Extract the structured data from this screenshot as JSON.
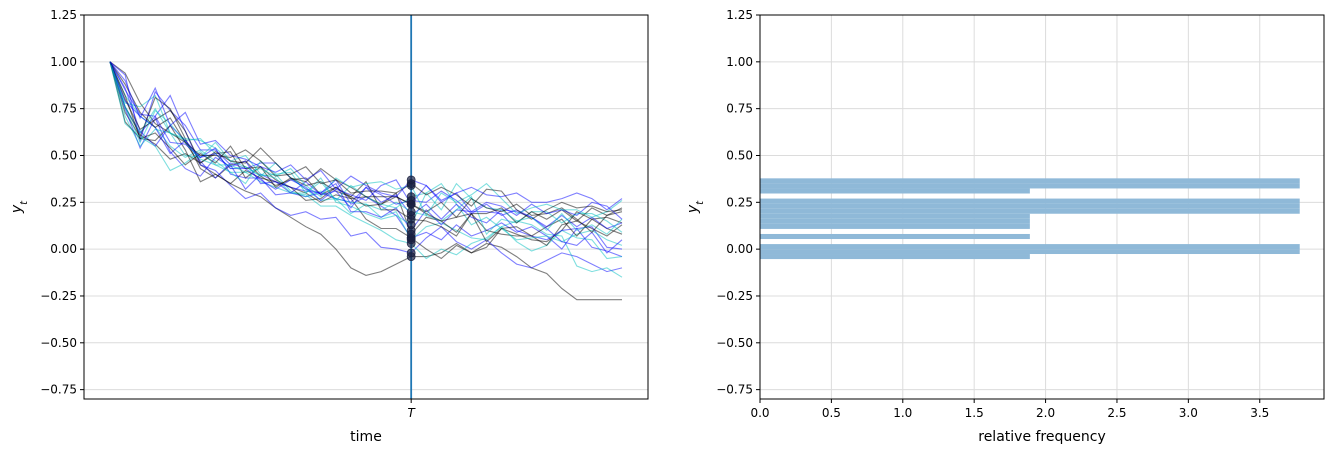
{
  "chart_data": [
    {
      "type": "line",
      "xlabel": "time",
      "ylabel": "y_t",
      "ylim": [
        -0.8,
        1.25
      ],
      "yticks": [
        -0.75,
        -0.5,
        -0.25,
        0.0,
        0.25,
        0.5,
        0.75,
        1.0,
        1.25
      ],
      "ytick_labels": [
        "−0.75",
        "−0.50",
        "−0.25",
        "0.00",
        "0.25",
        "0.50",
        "0.75",
        "1.00",
        "1.25"
      ],
      "xtick_labels": [
        "T"
      ],
      "grid": "horizontal",
      "vline_label": "T",
      "vline_step": 20,
      "n_steps": 34,
      "path_colors": [
        "#000000",
        "#0000ff",
        "#00c0c0"
      ],
      "vline_color": "#1f77b4",
      "marker_color": "#1a2040",
      "series": [
        {
          "values": [
            1.0,
            0.94,
            0.78,
            0.67,
            0.62,
            0.57,
            0.45,
            0.4,
            0.35,
            0.31,
            0.28,
            0.22,
            0.17,
            0.12,
            0.08,
            0.0,
            -0.1,
            -0.14,
            -0.12,
            -0.08,
            -0.04,
            -0.04,
            -0.02,
            0.03,
            -0.02,
            0.03,
            0.01,
            -0.04,
            -0.1,
            -0.13,
            -0.21,
            -0.27,
            -0.27,
            -0.27,
            -0.27
          ]
        },
        {
          "values": [
            1.0,
            0.76,
            0.62,
            0.71,
            0.82,
            0.63,
            0.45,
            0.42,
            0.34,
            0.27,
            0.3,
            0.22,
            0.18,
            0.2,
            0.16,
            0.17,
            0.07,
            0.09,
            0.01,
            0.0,
            -0.02,
            0.06,
            0.12,
            0.04,
            0.0,
            0.05,
            -0.02,
            -0.08,
            -0.1,
            -0.06,
            -0.02,
            -0.04,
            -0.08,
            -0.12,
            -0.1
          ]
        },
        {
          "values": [
            1.0,
            0.82,
            0.71,
            0.65,
            0.55,
            0.49,
            0.53,
            0.47,
            0.41,
            0.41,
            0.36,
            0.33,
            0.3,
            0.29,
            0.23,
            0.23,
            0.18,
            0.14,
            0.1,
            0.05,
            0.03,
            -0.05,
            0.0,
            -0.03,
            0.03,
            0.06,
            0.12,
            0.15,
            0.13,
            0.08,
            0.07,
            -0.09,
            -0.12,
            -0.1,
            -0.15
          ]
        },
        {
          "values": [
            1.0,
            0.76,
            0.61,
            0.56,
            0.48,
            0.51,
            0.46,
            0.51,
            0.52,
            0.38,
            0.44,
            0.37,
            0.33,
            0.3,
            0.25,
            0.29,
            0.27,
            0.16,
            0.11,
            0.11,
            0.06,
            0.0,
            -0.05,
            0.02,
            -0.02,
            0.01,
            0.11,
            0.08,
            0.05,
            0.04,
            0.1,
            0.2,
            0.16,
            0.11,
            0.08
          ]
        },
        {
          "values": [
            1.0,
            0.93,
            0.58,
            0.84,
            0.74,
            0.66,
            0.53,
            0.53,
            0.45,
            0.32,
            0.4,
            0.36,
            0.3,
            0.28,
            0.3,
            0.37,
            0.24,
            0.28,
            0.23,
            0.18,
            0.06,
            0.09,
            0.05,
            0.13,
            0.07,
            0.1,
            0.14,
            0.09,
            0.12,
            0.07,
            0.0,
            0.11,
            0.01,
            -0.01,
            -0.04
          ]
        },
        {
          "values": [
            1.0,
            0.78,
            0.76,
            0.82,
            0.62,
            0.58,
            0.59,
            0.51,
            0.43,
            0.44,
            0.39,
            0.4,
            0.31,
            0.28,
            0.31,
            0.27,
            0.19,
            0.24,
            0.17,
            0.2,
            0.05,
            0.12,
            0.14,
            0.1,
            0.06,
            0.05,
            0.12,
            0.04,
            -0.01,
            0.02,
            0.1,
            0.06,
            0.05,
            -0.05,
            -0.04
          ]
        },
        {
          "values": [
            1.0,
            0.73,
            0.6,
            0.81,
            0.75,
            0.59,
            0.43,
            0.38,
            0.45,
            0.47,
            0.39,
            0.34,
            0.37,
            0.38,
            0.29,
            0.33,
            0.27,
            0.28,
            0.24,
            0.3,
            0.08,
            0.17,
            0.15,
            0.09,
            0.19,
            0.1,
            0.08,
            0.07,
            0.07,
            0.02,
            0.13,
            0.15,
            0.11,
            0.07,
            0.13
          ]
        },
        {
          "values": [
            1.0,
            0.86,
            0.63,
            0.55,
            0.66,
            0.58,
            0.47,
            0.38,
            0.46,
            0.43,
            0.46,
            0.46,
            0.38,
            0.32,
            0.3,
            0.35,
            0.2,
            0.2,
            0.17,
            0.22,
            0.1,
            0.21,
            0.13,
            0.21,
            0.2,
            0.2,
            0.19,
            0.1,
            0.07,
            0.05,
            0.1,
            0.11,
            0.12,
            0.01,
            0.0
          ]
        },
        {
          "values": [
            1.0,
            0.76,
            0.62,
            0.75,
            0.62,
            0.5,
            0.49,
            0.57,
            0.47,
            0.5,
            0.4,
            0.38,
            0.3,
            0.3,
            0.38,
            0.25,
            0.23,
            0.19,
            0.16,
            0.18,
            0.13,
            0.3,
            0.35,
            0.24,
            0.13,
            0.17,
            0.11,
            0.05,
            0.06,
            0.07,
            0.04,
            0.08,
            0.1,
            0.05,
            0.02
          ]
        },
        {
          "values": [
            1.0,
            0.82,
            0.59,
            0.58,
            0.66,
            0.53,
            0.36,
            0.4,
            0.35,
            0.42,
            0.38,
            0.36,
            0.33,
            0.26,
            0.27,
            0.33,
            0.28,
            0.36,
            0.21,
            0.21,
            0.16,
            0.15,
            0.12,
            0.07,
            0.19,
            0.04,
            0.11,
            0.12,
            0.07,
            0.12,
            0.16,
            0.07,
            0.16,
            0.17,
            0.14
          ]
        },
        {
          "values": [
            1.0,
            0.75,
            0.54,
            0.7,
            0.52,
            0.43,
            0.39,
            0.49,
            0.44,
            0.47,
            0.35,
            0.36,
            0.33,
            0.31,
            0.3,
            0.27,
            0.25,
            0.33,
            0.25,
            0.29,
            0.18,
            0.24,
            0.16,
            0.24,
            0.17,
            0.14,
            0.21,
            0.2,
            0.17,
            0.11,
            0.04,
            0.02,
            0.09,
            -0.02,
            0.05
          ]
        },
        {
          "values": [
            1.0,
            0.71,
            0.55,
            0.64,
            0.62,
            0.59,
            0.58,
            0.54,
            0.47,
            0.44,
            0.39,
            0.46,
            0.38,
            0.32,
            0.26,
            0.27,
            0.25,
            0.24,
            0.21,
            0.25,
            0.2,
            0.18,
            0.15,
            0.21,
            0.28,
            0.08,
            0.16,
            0.14,
            0.2,
            0.2,
            0.14,
            0.19,
            0.19,
            0.15,
            0.09
          ]
        },
        {
          "values": [
            1.0,
            0.68,
            0.59,
            0.62,
            0.54,
            0.45,
            0.51,
            0.46,
            0.55,
            0.43,
            0.44,
            0.33,
            0.38,
            0.34,
            0.36,
            0.31,
            0.28,
            0.23,
            0.24,
            0.28,
            0.24,
            0.2,
            0.25,
            0.17,
            0.19,
            0.19,
            0.22,
            0.14,
            0.2,
            0.16,
            0.21,
            0.15,
            0.22,
            0.18,
            0.2
          ]
        },
        {
          "values": [
            1.0,
            0.85,
            0.72,
            0.71,
            0.57,
            0.56,
            0.49,
            0.54,
            0.4,
            0.38,
            0.38,
            0.29,
            0.3,
            0.36,
            0.29,
            0.31,
            0.22,
            0.33,
            0.29,
            0.24,
            0.26,
            0.25,
            0.31,
            0.26,
            0.19,
            0.24,
            0.18,
            0.21,
            0.17,
            0.12,
            0.18,
            0.12,
            0.17,
            0.11,
            0.14
          ]
        },
        {
          "values": [
            1.0,
            0.67,
            0.6,
            0.55,
            0.42,
            0.46,
            0.52,
            0.45,
            0.41,
            0.35,
            0.47,
            0.4,
            0.41,
            0.3,
            0.36,
            0.26,
            0.34,
            0.28,
            0.24,
            0.22,
            0.28,
            0.3,
            0.21,
            0.35,
            0.27,
            0.22,
            0.21,
            0.15,
            0.17,
            0.1,
            0.19,
            0.1,
            0.13,
            0.08,
            0.16
          ]
        },
        {
          "values": [
            1.0,
            0.8,
            0.64,
            0.69,
            0.74,
            0.63,
            0.46,
            0.52,
            0.47,
            0.46,
            0.54,
            0.46,
            0.38,
            0.36,
            0.43,
            0.37,
            0.33,
            0.28,
            0.28,
            0.28,
            0.24,
            0.19,
            0.15,
            0.17,
            0.27,
            0.22,
            0.2,
            0.24,
            0.18,
            0.19,
            0.22,
            0.16,
            0.09,
            0.18,
            0.22
          ]
        },
        {
          "values": [
            1.0,
            0.79,
            0.71,
            0.65,
            0.51,
            0.58,
            0.49,
            0.51,
            0.43,
            0.43,
            0.37,
            0.32,
            0.37,
            0.33,
            0.26,
            0.32,
            0.29,
            0.26,
            0.34,
            0.37,
            0.24,
            0.34,
            0.25,
            0.3,
            0.2,
            0.25,
            0.23,
            0.18,
            0.24,
            0.19,
            0.21,
            0.18,
            0.25,
            0.23,
            0.16
          ]
        },
        {
          "values": [
            1.0,
            0.76,
            0.57,
            0.74,
            0.67,
            0.57,
            0.48,
            0.45,
            0.45,
            0.41,
            0.43,
            0.39,
            0.43,
            0.34,
            0.28,
            0.38,
            0.33,
            0.35,
            0.36,
            0.32,
            0.34,
            0.18,
            0.3,
            0.25,
            0.29,
            0.35,
            0.27,
            0.19,
            0.22,
            0.24,
            0.21,
            0.21,
            0.17,
            0.2,
            0.26
          ]
        },
        {
          "values": [
            1.0,
            0.88,
            0.73,
            0.65,
            0.7,
            0.57,
            0.5,
            0.5,
            0.49,
            0.53,
            0.47,
            0.39,
            0.4,
            0.44,
            0.35,
            0.37,
            0.3,
            0.31,
            0.31,
            0.3,
            0.35,
            0.29,
            0.33,
            0.29,
            0.23,
            0.32,
            0.31,
            0.21,
            0.16,
            0.21,
            0.25,
            0.22,
            0.23,
            0.2,
            0.21
          ]
        },
        {
          "values": [
            1.0,
            0.9,
            0.7,
            0.86,
            0.66,
            0.73,
            0.56,
            0.58,
            0.5,
            0.48,
            0.44,
            0.41,
            0.45,
            0.37,
            0.42,
            0.32,
            0.39,
            0.34,
            0.3,
            0.28,
            0.37,
            0.34,
            0.26,
            0.3,
            0.33,
            0.29,
            0.28,
            0.3,
            0.25,
            0.25,
            0.27,
            0.3,
            0.27,
            0.21,
            0.27
          ]
        }
      ]
    },
    {
      "type": "bar",
      "orientation": "horizontal",
      "xlabel": "relative frequency",
      "ylabel": "y_t",
      "xlim": [
        0,
        3.95
      ],
      "ylim": [
        -0.8,
        1.25
      ],
      "xticks": [
        0.0,
        0.5,
        1.0,
        1.5,
        2.0,
        2.5,
        3.0,
        3.5
      ],
      "xtick_labels": [
        "0.0",
        "0.5",
        "1.0",
        "1.5",
        "2.0",
        "2.5",
        "3.0",
        "3.5"
      ],
      "yticks": [
        -0.75,
        -0.5,
        -0.25,
        0.0,
        0.25,
        0.5,
        0.75,
        1.0,
        1.25
      ],
      "ytick_labels": [
        "−0.75",
        "−0.50",
        "−0.25",
        "0.00",
        "0.25",
        "0.50",
        "0.75",
        "1.00",
        "1.25"
      ],
      "grid": "both",
      "bar_color": "#8fb9d8",
      "bins": [
        {
          "low": -0.053,
          "high": -0.026,
          "value": 1.89
        },
        {
          "low": -0.026,
          "high": 0.0,
          "value": 3.78
        },
        {
          "low": 0.0,
          "high": 0.027,
          "value": 3.78
        },
        {
          "low": 0.054,
          "high": 0.081,
          "value": 1.89
        },
        {
          "low": 0.108,
          "high": 0.135,
          "value": 1.89
        },
        {
          "low": 0.135,
          "high": 0.162,
          "value": 1.89
        },
        {
          "low": 0.162,
          "high": 0.189,
          "value": 1.89
        },
        {
          "low": 0.189,
          "high": 0.216,
          "value": 3.78
        },
        {
          "low": 0.216,
          "high": 0.243,
          "value": 3.78
        },
        {
          "low": 0.243,
          "high": 0.27,
          "value": 3.78
        },
        {
          "low": 0.297,
          "high": 0.324,
          "value": 1.89
        },
        {
          "low": 0.324,
          "high": 0.351,
          "value": 3.78
        },
        {
          "low": 0.351,
          "high": 0.378,
          "value": 3.78
        }
      ]
    }
  ]
}
